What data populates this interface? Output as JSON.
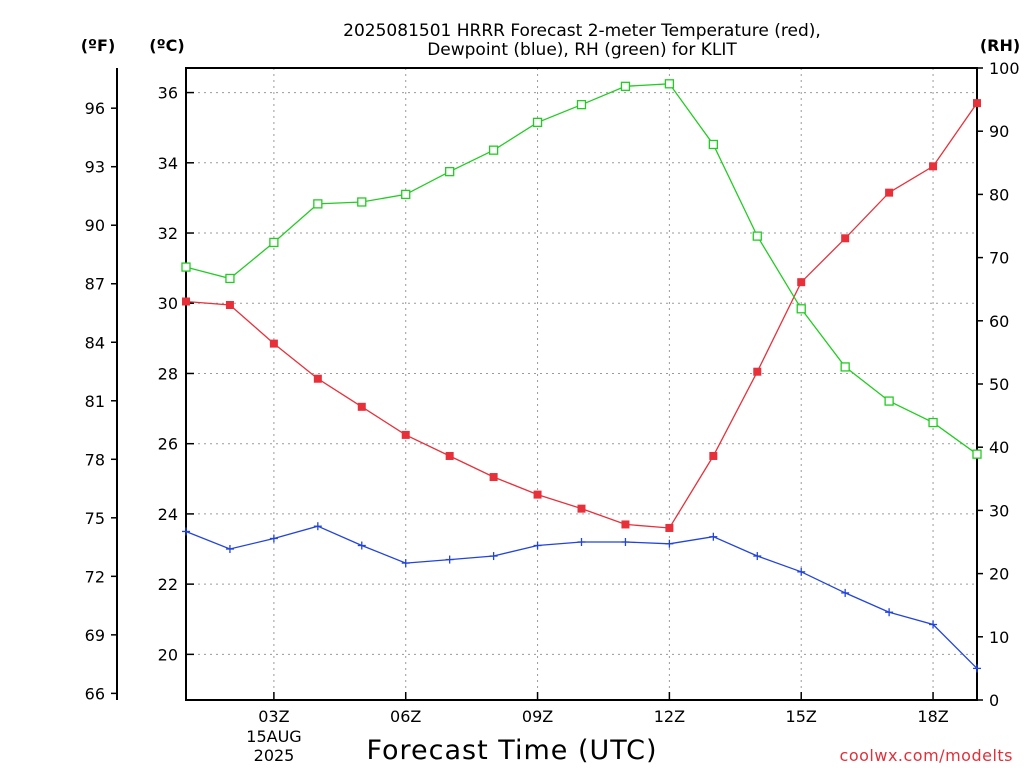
{
  "title": {
    "line1": "2025081501 HRRR Forecast 2-meter Temperature (red),",
    "line2": "Dewpoint (blue), RH (green) for KLIT"
  },
  "units": {
    "fahrenheit": "(ºF)",
    "celsius": "(ºC)",
    "rh": "(RH)"
  },
  "xaxis": {
    "title": "Forecast Time (UTC)",
    "ticks": [
      {
        "hour": 3,
        "label": "03Z"
      },
      {
        "hour": 6,
        "label": "06Z"
      },
      {
        "hour": 9,
        "label": "09Z"
      },
      {
        "hour": 12,
        "label": "12Z"
      },
      {
        "hour": 15,
        "label": "15Z"
      },
      {
        "hour": 18,
        "label": "18Z"
      }
    ],
    "date_line1": "15AUG",
    "date_line2": "2025"
  },
  "credit": "coolwx.com/modelts",
  "colors": {
    "temperature": "#e8303a",
    "dewpoint": "#2244dd",
    "rh": "#22cc22"
  },
  "chart_data": {
    "type": "line",
    "x": [
      1,
      2,
      3,
      4,
      5,
      6,
      7,
      8,
      9,
      10,
      11,
      12,
      13,
      14,
      15,
      16,
      17,
      18,
      19
    ],
    "xlim": [
      1,
      19
    ],
    "left_axis_celsius": {
      "ylim": [
        18.7,
        36.7
      ],
      "ticks": [
        20,
        22,
        24,
        26,
        28,
        30,
        32,
        34,
        36
      ]
    },
    "outer_axis_fahrenheit": {
      "ticks": [
        66,
        69,
        72,
        75,
        78,
        81,
        84,
        87,
        90,
        93,
        96
      ]
    },
    "right_axis_rh": {
      "ylim": [
        0,
        100
      ],
      "ticks": [
        0,
        10,
        20,
        30,
        40,
        50,
        60,
        70,
        80,
        90,
        100
      ]
    },
    "grid": "dotted",
    "series": [
      {
        "name": "Temperature",
        "axis": "celsius",
        "marker": "filled-square",
        "values": [
          30.05,
          29.95,
          28.85,
          27.85,
          27.05,
          26.25,
          25.65,
          25.05,
          24.55,
          24.15,
          23.7,
          23.6,
          25.65,
          28.05,
          30.6,
          31.85,
          33.15,
          33.9,
          35.7
        ]
      },
      {
        "name": "Dewpoint",
        "axis": "celsius",
        "marker": "plus",
        "values": [
          23.5,
          23.0,
          23.3,
          23.65,
          23.1,
          22.6,
          22.7,
          22.8,
          23.1,
          23.2,
          23.2,
          23.15,
          23.35,
          22.8,
          22.35,
          21.75,
          21.2,
          20.85,
          19.6
        ]
      },
      {
        "name": "RH",
        "axis": "rh",
        "marker": "open-square",
        "values": [
          68.5,
          66.7,
          72.4,
          78.5,
          78.8,
          80.0,
          83.6,
          87.0,
          91.4,
          94.2,
          97.1,
          97.5,
          87.9,
          73.4,
          61.9,
          52.7,
          47.3,
          43.9,
          38.9
        ]
      }
    ]
  }
}
